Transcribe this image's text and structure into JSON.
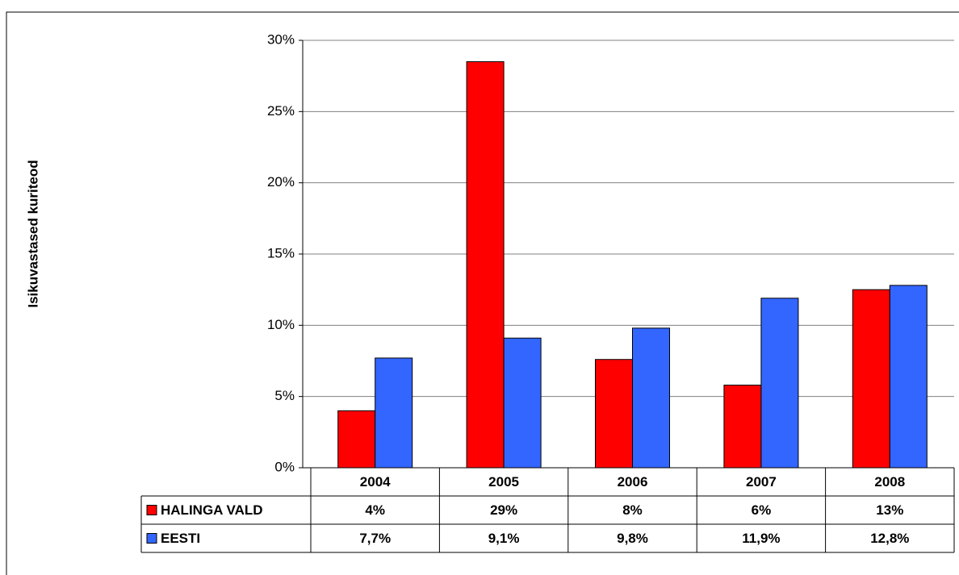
{
  "chart_data": {
    "type": "bar",
    "y_label": "Isikuvastased kuriteod",
    "categories": [
      "2004",
      "2005",
      "2006",
      "2007",
      "2008"
    ],
    "series": [
      {
        "name": "HALINGA VALD",
        "color": "#ff0000",
        "values": [
          4,
          28.5,
          7.6,
          5.8,
          12.5
        ],
        "value_labels": [
          "4%",
          "29%",
          "8%",
          "6%",
          "13%"
        ]
      },
      {
        "name": "EESTI",
        "color": "#3366ff",
        "values": [
          7.7,
          9.1,
          9.8,
          11.9,
          12.8
        ],
        "value_labels": [
          "7,7%",
          "9,1%",
          "9,8%",
          "11,9%",
          "12,8%"
        ]
      }
    ],
    "ylim": [
      0,
      30
    ],
    "yticks": [
      {
        "value": 0,
        "label": "0%"
      },
      {
        "value": 5,
        "label": "5%"
      },
      {
        "value": 10,
        "label": "10%"
      },
      {
        "value": 15,
        "label": "15%"
      },
      {
        "value": 20,
        "label": "20%"
      },
      {
        "value": 25,
        "label": "25%"
      },
      {
        "value": 30,
        "label": "30%"
      }
    ],
    "grid": true
  }
}
